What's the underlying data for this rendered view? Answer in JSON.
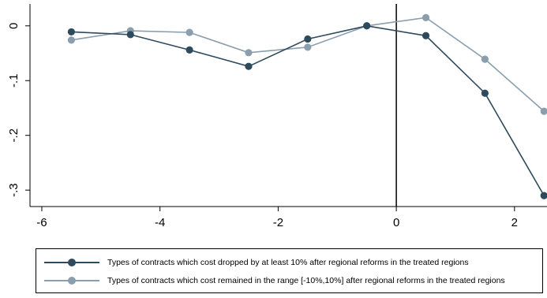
{
  "chart_data": {
    "type": "line",
    "title": "",
    "xlabel": "",
    "ylabel": "",
    "xlim": [
      -6.2,
      2.55
    ],
    "ylim": [
      -0.33,
      0.04
    ],
    "x_ticks": [
      -6,
      -4,
      -2,
      0,
      2
    ],
    "x_tick_labels": [
      "-6",
      "-4",
      "-2",
      "0",
      "2"
    ],
    "y_ticks": [
      0,
      -0.1,
      -0.2,
      -0.3
    ],
    "y_tick_labels": [
      "0",
      "-.1",
      "-.2",
      "-.3"
    ],
    "vertical_reference_line_x": 0,
    "grid": false,
    "legend_position": "bottom",
    "x": [
      -5.5,
      -4.5,
      -3.5,
      -2.5,
      -1.5,
      -0.5,
      0.5,
      1.5,
      2.5
    ],
    "series": [
      {
        "name": "Types of contracts which cost dropped by at least 10% after regional reforms in the treated regions",
        "color": "#2e4a5d",
        "values": [
          -0.011,
          -0.016,
          -0.044,
          -0.074,
          -0.024,
          0.0,
          -0.018,
          -0.123,
          -0.31
        ]
      },
      {
        "name": "Types of contracts which cost remained in the range [-10%,10%] after regional reforms in the treated regions",
        "color": "#8a9eae",
        "values": [
          -0.026,
          -0.009,
          -0.012,
          -0.049,
          -0.039,
          0.0,
          0.015,
          -0.061,
          -0.156
        ]
      }
    ]
  }
}
